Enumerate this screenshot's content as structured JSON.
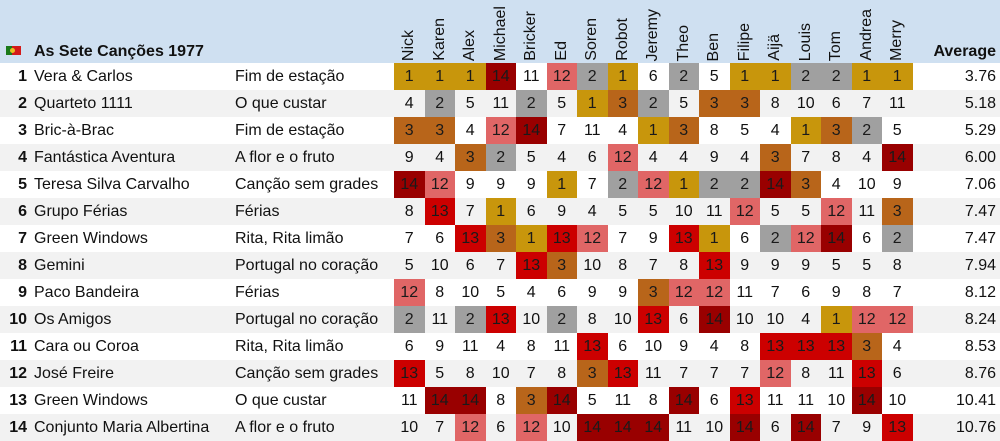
{
  "title": "As Sete Canções 1977",
  "flag_icon": "portugal-flag-icon",
  "average_label": "Average",
  "judges": [
    "Nick",
    "Karen",
    "Alex",
    "Michael",
    "Bricker",
    "Ed",
    "Soren",
    "Robot",
    "Jeremy",
    "Theo",
    "Ben",
    "Filipe",
    "Aijä",
    "Louis",
    "Tom",
    "Andrea",
    "Merry"
  ],
  "score_colors": {
    "1": "#c8960c",
    "2": "#a0a0a0",
    "3": "#b8651a",
    "12": "#e06666",
    "13": "#cc0000",
    "14": "#990000"
  },
  "rows": [
    {
      "rank": "1",
      "artist": "Vera & Carlos",
      "song": "Fim de estação",
      "scores": [
        1,
        1,
        1,
        14,
        11,
        12,
        2,
        1,
        6,
        2,
        5,
        1,
        1,
        2,
        2,
        1,
        1
      ],
      "average": "3.76"
    },
    {
      "rank": "2",
      "artist": "Quarteto 1111",
      "song": "O que custar",
      "scores": [
        4,
        2,
        5,
        11,
        2,
        5,
        1,
        3,
        2,
        5,
        3,
        3,
        8,
        10,
        6,
        7,
        11
      ],
      "average": "5.18"
    },
    {
      "rank": "3",
      "artist": "Bric-à-Brac",
      "song": "Fim de estação",
      "scores": [
        3,
        3,
        4,
        12,
        14,
        7,
        11,
        4,
        1,
        3,
        8,
        5,
        4,
        1,
        3,
        2,
        5
      ],
      "average": "5.29"
    },
    {
      "rank": "4",
      "artist": "Fantástica Aventura",
      "song": "A flor e o fruto",
      "scores": [
        9,
        4,
        3,
        2,
        5,
        4,
        6,
        12,
        4,
        4,
        9,
        4,
        3,
        7,
        8,
        4,
        14
      ],
      "average": "6.00"
    },
    {
      "rank": "5",
      "artist": "Teresa Silva Carvalho",
      "song": "Canção sem grades",
      "scores": [
        14,
        12,
        9,
        9,
        9,
        1,
        7,
        2,
        12,
        1,
        2,
        2,
        14,
        3,
        4,
        10,
        9
      ],
      "average": "7.06"
    },
    {
      "rank": "6",
      "artist": "Grupo Férias",
      "song": "Férias",
      "scores": [
        8,
        13,
        7,
        1,
        6,
        9,
        4,
        5,
        5,
        10,
        11,
        12,
        5,
        5,
        12,
        11,
        3
      ],
      "average": "7.47"
    },
    {
      "rank": "7",
      "artist": "Green Windows",
      "song": "Rita, Rita limão",
      "scores": [
        7,
        6,
        13,
        3,
        1,
        13,
        12,
        7,
        9,
        13,
        1,
        6,
        2,
        12,
        14,
        6,
        2
      ],
      "average": "7.47"
    },
    {
      "rank": "8",
      "artist": "Gemini",
      "song": "Portugal no coração",
      "scores": [
        5,
        10,
        6,
        7,
        13,
        3,
        10,
        8,
        7,
        8,
        13,
        9,
        9,
        9,
        5,
        5,
        8
      ],
      "average": "7.94"
    },
    {
      "rank": "9",
      "artist": "Paco Bandeira",
      "song": "Férias",
      "scores": [
        12,
        8,
        10,
        5,
        4,
        6,
        9,
        9,
        3,
        12,
        12,
        11,
        7,
        6,
        9,
        8,
        7
      ],
      "average": "8.12"
    },
    {
      "rank": "10",
      "artist": "Os Amigos",
      "song": "Portugal no coração",
      "scores": [
        2,
        11,
        2,
        13,
        10,
        2,
        8,
        10,
        13,
        6,
        14,
        10,
        10,
        4,
        1,
        12,
        12
      ],
      "average": "8.24"
    },
    {
      "rank": "11",
      "artist": "Cara ou Coroa",
      "song": "Rita, Rita limão",
      "scores": [
        6,
        9,
        11,
        4,
        8,
        11,
        13,
        6,
        10,
        9,
        4,
        8,
        13,
        13,
        13,
        3,
        4
      ],
      "average": "8.53"
    },
    {
      "rank": "12",
      "artist": "José Freire",
      "song": "Canção sem grades",
      "scores": [
        13,
        5,
        8,
        10,
        7,
        8,
        3,
        13,
        11,
        7,
        7,
        7,
        12,
        8,
        11,
        13,
        6
      ],
      "average": "8.76"
    },
    {
      "rank": "13",
      "artist": "Green Windows",
      "song": "O que custar",
      "scores": [
        11,
        14,
        14,
        8,
        3,
        14,
        5,
        11,
        8,
        14,
        6,
        13,
        11,
        11,
        10,
        14,
        10
      ],
      "average": "10.41"
    },
    {
      "rank": "14",
      "artist": "Conjunto Maria Albertina",
      "song": "A flor e o fruto",
      "scores": [
        10,
        7,
        12,
        6,
        12,
        10,
        14,
        14,
        14,
        11,
        10,
        14,
        6,
        14,
        7,
        9,
        13
      ],
      "average": "10.76"
    }
  ]
}
